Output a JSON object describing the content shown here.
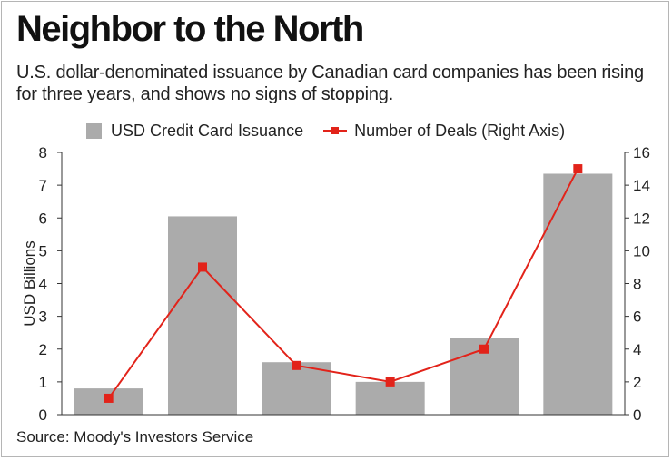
{
  "title": "Neighbor to the North",
  "subtitle": "U.S. dollar-denominated issuance by Canadian card companies has been rising for three years, and shows no signs of stopping.",
  "source": "Source: Moody's Investors Service",
  "colors": {
    "bar": "#ababab",
    "line": "#e2231a",
    "axis": "#333333",
    "text": "#222222"
  },
  "chart_data": {
    "type": "bar",
    "categories": [
      "",
      "",
      "",
      "",
      "",
      ""
    ],
    "series": [
      {
        "name": "USD Credit Card Issuance",
        "type": "bar",
        "axis": "left",
        "values": [
          0.8,
          6.05,
          1.6,
          1.0,
          2.35,
          7.35
        ]
      },
      {
        "name": "Number of Deals (Right Axis)",
        "type": "line",
        "axis": "right",
        "values": [
          1,
          9,
          3,
          2,
          4,
          15
        ]
      }
    ],
    "ylabel": "USD Billions",
    "ylim": [
      0,
      8
    ],
    "yticks": [
      "0",
      "1",
      "2",
      "3",
      "4",
      "5",
      "6",
      "7",
      "8"
    ],
    "y2lim": [
      0,
      16
    ],
    "y2ticks": [
      "0",
      "2",
      "4",
      "6",
      "8",
      "10",
      "12",
      "14",
      "16"
    ],
    "legend_position": "top",
    "grid": false
  }
}
